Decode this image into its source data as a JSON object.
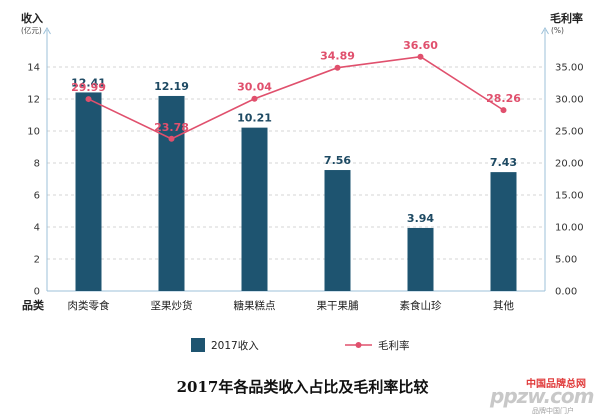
{
  "chart_data": {
    "type": "bar",
    "title": "2017年各品类收入占比及毛利率比较",
    "category_axis_label": "品类",
    "categories": [
      "肉类零食",
      "坚果炒货",
      "糖果糕点",
      "果干果脯",
      "素食山珍",
      "其他"
    ],
    "left_axis": {
      "label": "收入",
      "unit": "(亿元)",
      "ylim": [
        0,
        16
      ],
      "ticks": [
        "0",
        "2",
        "4",
        "6",
        "8",
        "10",
        "12",
        "14"
      ]
    },
    "right_axis": {
      "label": "毛利率",
      "unit": "(%)",
      "ylim": [
        0,
        40
      ],
      "ticks": [
        "0.00",
        "5.00",
        "10.00",
        "15.00",
        "20.00",
        "25.00",
        "30.00",
        "35.00"
      ]
    },
    "series": [
      {
        "name": "2017收入",
        "type": "bar",
        "axis": "left",
        "color": "#1e5470",
        "values": [
          12.41,
          12.19,
          10.21,
          7.56,
          3.94,
          7.43
        ],
        "labels": [
          "12.41",
          "12.19",
          "10.21",
          "7.56",
          "3.94",
          "7.43"
        ]
      },
      {
        "name": "毛利率",
        "type": "line",
        "axis": "right",
        "color": "#e0506d",
        "values": [
          29.99,
          23.78,
          30.04,
          34.89,
          36.6,
          28.26
        ],
        "labels": [
          "29.99",
          "23.78",
          "30.04",
          "34.89",
          "36.60",
          "28.26"
        ]
      }
    ],
    "grid": "horizontal-dashed",
    "legend": "bottom-center"
  },
  "watermark": {
    "line1": "中国品牌总网",
    "line2": "ppzw.com",
    "line3": "品牌中国门户"
  }
}
